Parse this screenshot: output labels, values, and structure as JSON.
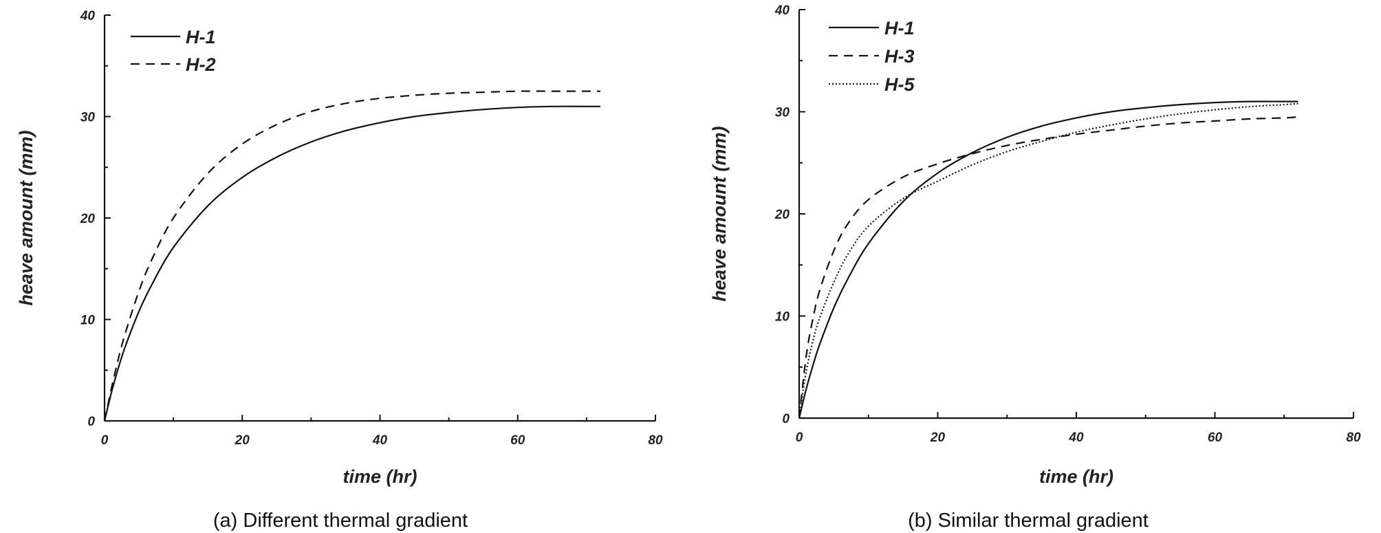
{
  "chart_data": [
    {
      "type": "line",
      "caption": "(a) Different thermal gradient",
      "xlabel": "time (hr)",
      "ylabel": "heave amount (mm)",
      "xlim": [
        0,
        80
      ],
      "ylim": [
        0,
        40
      ],
      "xticks": [
        "0",
        "20",
        "40",
        "60",
        "80"
      ],
      "yticks": [
        "0",
        "10",
        "20",
        "30",
        "40"
      ],
      "grid": false,
      "legend_position": "top-left",
      "series": [
        {
          "name": "H-1",
          "style": "solid",
          "x": [
            0,
            1,
            2,
            3,
            5,
            7,
            10,
            15,
            20,
            25,
            30,
            35,
            40,
            45,
            50,
            55,
            60,
            65,
            70,
            72
          ],
          "y": [
            0,
            2.8,
            5.2,
            7.3,
            10.8,
            13.6,
            17.1,
            21.2,
            24.0,
            26.0,
            27.5,
            28.6,
            29.4,
            30.0,
            30.4,
            30.7,
            30.9,
            31.0,
            31.0,
            31.0
          ]
        },
        {
          "name": "H-2",
          "style": "dashed",
          "x": [
            0,
            1,
            2,
            3,
            5,
            7,
            10,
            15,
            20,
            25,
            30,
            35,
            40,
            45,
            50,
            55,
            60,
            65,
            70,
            72
          ],
          "y": [
            0,
            3.2,
            6.1,
            8.6,
            12.8,
            16.1,
            20.0,
            24.4,
            27.3,
            29.2,
            30.5,
            31.3,
            31.8,
            32.1,
            32.3,
            32.4,
            32.5,
            32.5,
            32.5,
            32.5
          ]
        }
      ]
    },
    {
      "type": "line",
      "caption": "(b) Similar thermal gradient",
      "xlabel": "time (hr)",
      "ylabel": "heave amount (mm)",
      "xlim": [
        0,
        80
      ],
      "ylim": [
        0,
        40
      ],
      "xticks": [
        "0",
        "20",
        "40",
        "60",
        "80"
      ],
      "yticks": [
        "0",
        "10",
        "20",
        "30",
        "40"
      ],
      "grid": false,
      "legend_position": "top-left",
      "series": [
        {
          "name": "H-1",
          "style": "solid",
          "x": [
            0,
            1,
            2,
            3,
            5,
            7,
            10,
            15,
            20,
            25,
            30,
            35,
            40,
            45,
            50,
            55,
            60,
            65,
            70,
            72
          ],
          "y": [
            0,
            2.8,
            5.2,
            7.3,
            10.8,
            13.6,
            17.1,
            21.2,
            24.0,
            26.0,
            27.5,
            28.6,
            29.4,
            30.0,
            30.4,
            30.7,
            30.9,
            31.0,
            31.0,
            31.0
          ]
        },
        {
          "name": "H-3",
          "style": "dashed",
          "x": [
            0,
            1,
            2,
            3,
            5,
            7,
            10,
            15,
            20,
            25,
            30,
            35,
            40,
            45,
            50,
            55,
            60,
            65,
            70,
            72
          ],
          "y": [
            0,
            6.0,
            9.8,
            12.6,
            16.4,
            19.0,
            21.4,
            23.6,
            24.9,
            25.9,
            26.7,
            27.3,
            27.8,
            28.2,
            28.6,
            28.9,
            29.1,
            29.3,
            29.4,
            29.5
          ]
        },
        {
          "name": "H-5",
          "style": "dotted",
          "x": [
            0,
            1,
            2,
            3,
            5,
            7,
            10,
            15,
            20,
            25,
            30,
            35,
            40,
            45,
            50,
            55,
            60,
            65,
            70,
            72
          ],
          "y": [
            0,
            4.5,
            7.6,
            9.9,
            13.3,
            16.0,
            18.8,
            21.5,
            23.2,
            24.8,
            26.1,
            27.1,
            28.0,
            28.7,
            29.3,
            29.8,
            30.2,
            30.5,
            30.7,
            30.8
          ]
        }
      ]
    }
  ]
}
